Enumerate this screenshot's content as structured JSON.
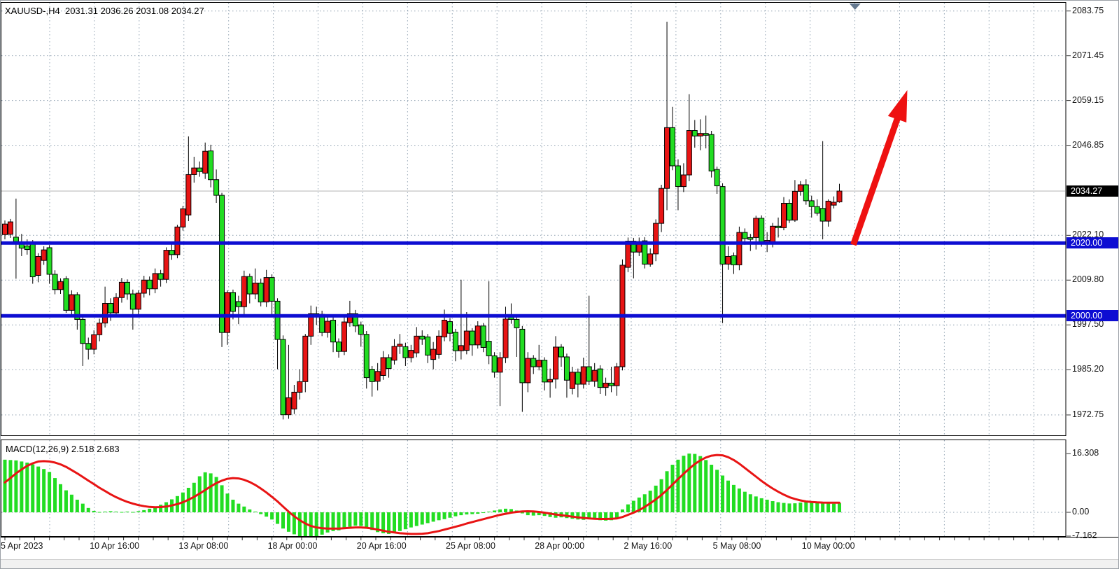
{
  "header": {
    "ohlc_label": "XAUUSD-,H4  2031.31 2036.26 2031.08 2034.27"
  },
  "indicator": {
    "label": "MACD(12,26,9) 2.518 2.683"
  },
  "colors": {
    "bull": "#e81414",
    "bear": "#22dd22",
    "wick": "#000000",
    "body_border": "#000000",
    "grid": "#8fa0b0",
    "current_line": "#b4b4b4",
    "level_line": "#0d0dd2",
    "axis_box_level_bg": "#0d0dd2",
    "axis_box_current_bg": "#000000",
    "macd_histogram": "#22dd22",
    "macd_signal": "#e81414",
    "arrow": "#ee1111",
    "marker": "#64788f",
    "panel_border": "#000000"
  },
  "chart_data": {
    "type": "candlestick",
    "symbol": "XAUUSD-",
    "timeframe": "H4",
    "title": "XAUUSD-,H4",
    "current_price": 2034.27,
    "ohlc_current": {
      "open": 2031.31,
      "high": 2036.26,
      "low": 2031.08,
      "close": 2034.27
    },
    "ylim": [
      1967.0,
      2085.5
    ],
    "price_ticks": [
      {
        "text": "2083.75",
        "price": 2083.75
      },
      {
        "text": "2071.45",
        "price": 2071.45
      },
      {
        "text": "2059.15",
        "price": 2059.15
      },
      {
        "text": "2046.85",
        "price": 2046.85
      },
      {
        "text": "2022.10",
        "price": 2022.1
      },
      {
        "text": "2009.80",
        "price": 2009.8
      },
      {
        "text": "1997.50",
        "price": 1997.5
      },
      {
        "text": "1985.20",
        "price": 1985.2
      },
      {
        "text": "1972.75",
        "price": 1972.75
      }
    ],
    "current_price_box": {
      "text": "2034.27",
      "price": 2034.27
    },
    "levels": [
      {
        "text": "2020.00",
        "price": 2020.0
      },
      {
        "text": "2000.00",
        "price": 2000.0
      }
    ],
    "x_ticks": [
      {
        "text": "5 Apr 2023",
        "bar": 0
      },
      {
        "text": "10 Apr 16:00",
        "bar": 16
      },
      {
        "text": "13 Apr 08:00",
        "bar": 32
      },
      {
        "text": "18 Apr 00:00",
        "bar": 48
      },
      {
        "text": "20 Apr 16:00",
        "bar": 64
      },
      {
        "text": "25 Apr 08:00",
        "bar": 80
      },
      {
        "text": "28 Apr 00:00",
        "bar": 96
      },
      {
        "text": "2 May 16:00",
        "bar": 112
      },
      {
        "text": "5 May 08:00",
        "bar": 128
      },
      {
        "text": "10 May 00:00",
        "bar": 144
      }
    ],
    "candles": [
      [
        2022.3,
        2026.2,
        2021.0,
        2025.2
      ],
      [
        2022.4,
        2026.6,
        2021.4,
        2025.8
      ],
      [
        2021.6,
        2032.2,
        2010.2,
        2020.4
      ],
      [
        2019.8,
        2022.5,
        2016.4,
        2018.6
      ],
      [
        2019.2,
        2021.0,
        2016.8,
        2018.2
      ],
      [
        2019.9,
        2020.8,
        2008.8,
        2010.7
      ],
      [
        2011.1,
        2017.2,
        2009.2,
        2016.3
      ],
      [
        2015.2,
        2019.1,
        2014.0,
        2018.1
      ],
      [
        2018.7,
        2019.4,
        2008.8,
        2011.4
      ],
      [
        2011.4,
        2012.5,
        2005.9,
        2007.2
      ],
      [
        2007.2,
        2010.3,
        2006.0,
        2009.4
      ],
      [
        2010.2,
        2010.9,
        2000.8,
        2001.5
      ],
      [
        2001.5,
        2007.0,
        2000.2,
        2005.8
      ],
      [
        2005.8,
        2006.5,
        1996.2,
        1999.0
      ],
      [
        1999.0,
        2000.1,
        1986.2,
        1992.4
      ],
      [
        1992.4,
        1994.0,
        1988.0,
        1990.8
      ],
      [
        1990.8,
        1996.0,
        1989.4,
        1994.8
      ],
      [
        1994.8,
        1999.2,
        1993.0,
        1998.0
      ],
      [
        1998.0,
        2008.0,
        1996.8,
        2003.4
      ],
      [
        2003.4,
        2004.8,
        1998.6,
        2000.8
      ],
      [
        2000.8,
        2006.2,
        1999.8,
        2005.0
      ],
      [
        2005.0,
        2010.4,
        2003.6,
        2009.2
      ],
      [
        2009.2,
        2010.0,
        2004.4,
        2006.0
      ],
      [
        2006.0,
        2007.2,
        1996.2,
        2001.8
      ],
      [
        2001.8,
        2007.0,
        2000.4,
        2006.2
      ],
      [
        2006.2,
        2011.0,
        2005.0,
        2009.8
      ],
      [
        2009.8,
        2010.8,
        2005.6,
        2007.4
      ],
      [
        2007.4,
        2013.0,
        2006.2,
        2011.6
      ],
      [
        2011.6,
        2012.6,
        2008.0,
        2010.0
      ],
      [
        2010.0,
        2018.8,
        2009.0,
        2018.0
      ],
      [
        2018.0,
        2019.6,
        2015.4,
        2016.8
      ],
      [
        2016.8,
        2025.0,
        2015.8,
        2024.4
      ],
      [
        2024.4,
        2030.2,
        2023.4,
        2029.4
      ],
      [
        2027.7,
        2049.3,
        2026.0,
        2038.8
      ],
      [
        2038.8,
        2043.7,
        2036.6,
        2040.6
      ],
      [
        2040.6,
        2042.4,
        2038.2,
        2039.6
      ],
      [
        2039.2,
        2047.6,
        2037.6,
        2045.2
      ],
      [
        2045.3,
        2047.0,
        2035.3,
        2037.4
      ],
      [
        2037.4,
        2040.2,
        2031.0,
        2033.1
      ],
      [
        2033.1,
        2033.8,
        1991.4,
        1995.4
      ],
      [
        1995.4,
        2007.0,
        1992.0,
        2006.4
      ],
      [
        2006.4,
        2007.2,
        1999.0,
        2001.2
      ],
      [
        2003.9,
        2005.5,
        1997.7,
        2002.5
      ],
      [
        2002.5,
        2012.4,
        2000.4,
        2010.8
      ],
      [
        2010.8,
        2011.6,
        2003.4,
        2006.0
      ],
      [
        2006.0,
        2013.0,
        2004.6,
        2009.0
      ],
      [
        2009.0,
        2010.2,
        2002.6,
        2003.8
      ],
      [
        2003.8,
        2012.6,
        2002.4,
        2010.5
      ],
      [
        2010.5,
        2011.4,
        2000.2,
        2004.0
      ],
      [
        2004.0,
        2004.8,
        1985.3,
        1993.5
      ],
      [
        1993.5,
        1994.6,
        1971.5,
        1972.8
      ],
      [
        1972.8,
        1992.0,
        1971.7,
        1977.5
      ],
      [
        1974.4,
        1981.0,
        1973.0,
        1979.0
      ],
      [
        1979.0,
        1985.3,
        1977.0,
        1981.9
      ],
      [
        1981.9,
        1995.0,
        1979.0,
        1994.4
      ],
      [
        1994.4,
        2002.8,
        1992.0,
        2000.6
      ],
      [
        2000.6,
        2002.5,
        1997.5,
        1999.8
      ],
      [
        2000.4,
        2001.4,
        1994.4,
        1995.4
      ],
      [
        1995.4,
        2000.0,
        1994.0,
        1998.5
      ],
      [
        1998.8,
        1999.6,
        1990.0,
        1992.8
      ],
      [
        1992.8,
        1993.8,
        1988.5,
        1990.2
      ],
      [
        1990.2,
        2000.2,
        1989.2,
        1998.3
      ],
      [
        1998.1,
        2004.1,
        1997.0,
        2000.6
      ],
      [
        2000.6,
        2001.6,
        1995.5,
        1997.2
      ],
      [
        1997.5,
        1998.4,
        1991.5,
        1994.9
      ],
      [
        1994.9,
        1995.8,
        1980.0,
        1983.0
      ],
      [
        1985.3,
        1986.2,
        1977.8,
        1981.9
      ],
      [
        1982.0,
        1987.0,
        1979.5,
        1984.7
      ],
      [
        1983.6,
        1990.3,
        1982.4,
        1988.5
      ],
      [
        1988.5,
        1989.4,
        1983.0,
        1985.5
      ],
      [
        1987.8,
        1993.6,
        1986.6,
        1991.6
      ],
      [
        1991.6,
        1995.0,
        1989.5,
        1992.2
      ],
      [
        1991.5,
        1992.6,
        1986.2,
        1988.5
      ],
      [
        1988.5,
        1992.0,
        1987.2,
        1990.5
      ],
      [
        1989.8,
        1996.9,
        1988.6,
        1994.4
      ],
      [
        1994.4,
        1996.0,
        1992.0,
        1993.6
      ],
      [
        1994.2,
        1995.0,
        1987.0,
        1989.2
      ],
      [
        1988.0,
        1992.8,
        1985.3,
        1990.8
      ],
      [
        1989.4,
        1996.0,
        1988.2,
        1994.4
      ],
      [
        1994.2,
        2001.7,
        1993.0,
        1998.8
      ],
      [
        1998.4,
        1999.4,
        1993.0,
        1995.2
      ],
      [
        1995.5,
        1996.4,
        1987.5,
        1990.4
      ],
      [
        1990.4,
        2009.9,
        1988.0,
        1991.8
      ],
      [
        1990.5,
        2001.0,
        1989.4,
        1995.8
      ],
      [
        1995.8,
        1996.6,
        1989.0,
        1992.0
      ],
      [
        1992.0,
        1998.5,
        1991.0,
        1997.2
      ],
      [
        1997.2,
        1998.0,
        1990.0,
        1991.3
      ],
      [
        1993.0,
        2009.5,
        1986.7,
        1989.0
      ],
      [
        1989.0,
        1990.0,
        1983.0,
        1984.5
      ],
      [
        1984.5,
        1990.0,
        1975.2,
        1988.5
      ],
      [
        1988.5,
        2002.5,
        1987.0,
        1999.1
      ],
      [
        2000.2,
        2003.4,
        1997.8,
        1999.0
      ],
      [
        1999.0,
        2000.0,
        1988.7,
        1996.7
      ],
      [
        1996.3,
        1997.2,
        1973.6,
        1981.6
      ],
      [
        1981.6,
        1990.0,
        1979.0,
        1988.3
      ],
      [
        1988.3,
        1989.2,
        1984.0,
        1986.0
      ],
      [
        1986.0,
        1992.0,
        1985.0,
        1987.8
      ],
      [
        1987.8,
        1988.6,
        1979.5,
        1981.8
      ],
      [
        1981.8,
        1985.5,
        1977.5,
        1982.5
      ],
      [
        1982.6,
        1994.4,
        1980.0,
        1991.4
      ],
      [
        1991.4,
        1992.2,
        1986.0,
        1988.7
      ],
      [
        1988.7,
        1989.6,
        1977.5,
        1982.3
      ],
      [
        1980.0,
        1986.0,
        1978.4,
        1984.5
      ],
      [
        1984.5,
        1985.5,
        1977.6,
        1981.2
      ],
      [
        1981.2,
        1988.5,
        1980.0,
        1986.0
      ],
      [
        1986.0,
        2005.5,
        1981.0,
        1982.0
      ],
      [
        1982.0,
        1987.0,
        1980.5,
        1985.0
      ],
      [
        1985.4,
        1986.4,
        1978.5,
        1980.3
      ],
      [
        1980.3,
        1983.0,
        1978.0,
        1981.5
      ],
      [
        1981.5,
        1986.0,
        1979.0,
        1980.8
      ],
      [
        1980.8,
        1987.0,
        1978.0,
        1986.0
      ],
      [
        1986.0,
        2015.5,
        1985.0,
        2013.9
      ],
      [
        2013.3,
        2021.5,
        2012.0,
        2020.5
      ],
      [
        2020.5,
        2021.4,
        2010.3,
        2017.5
      ],
      [
        2017.5,
        2021.5,
        2016.4,
        2020.4
      ],
      [
        2020.6,
        2021.6,
        2013.0,
        2014.2
      ],
      [
        2014.2,
        2018.5,
        2013.5,
        2017.0
      ],
      [
        2017.0,
        2026.5,
        2015.0,
        2025.4
      ],
      [
        2025.4,
        2036.0,
        2023.0,
        2035.0
      ],
      [
        2035.0,
        2080.8,
        2029.0,
        2051.7
      ],
      [
        2051.7,
        2057.4,
        2040.0,
        2041.2
      ],
      [
        2041.2,
        2043.0,
        2029.0,
        2035.5
      ],
      [
        2035.5,
        2041.9,
        2034.0,
        2038.7
      ],
      [
        2038.7,
        2060.9,
        2037.0,
        2050.9
      ],
      [
        2050.9,
        2053.8,
        2046.2,
        2049.4
      ],
      [
        2049.4,
        2054.0,
        2045.5,
        2050.1
      ],
      [
        2050.1,
        2055.0,
        2046.0,
        2049.6
      ],
      [
        2049.8,
        2050.8,
        2038.0,
        2039.8
      ],
      [
        2040.2,
        2041.0,
        2033.5,
        2035.7
      ],
      [
        2035.5,
        2036.4,
        1998.0,
        2014.2
      ],
      [
        2014.2,
        2019.1,
        2012.6,
        2016.3
      ],
      [
        2016.5,
        2017.4,
        2011.5,
        2014.0
      ],
      [
        2014.0,
        2024.5,
        2012.5,
        2022.9
      ],
      [
        2022.9,
        2024.0,
        2019.5,
        2021.2
      ],
      [
        2021.5,
        2022.5,
        2017.8,
        2021.0
      ],
      [
        2021.5,
        2027.5,
        2018.2,
        2026.8
      ],
      [
        2026.8,
        2027.6,
        2019.0,
        2019.9
      ],
      [
        2019.9,
        2023.0,
        2017.5,
        2020.7
      ],
      [
        2020.3,
        2025.5,
        2018.8,
        2024.6
      ],
      [
        2024.6,
        2027.0,
        2021.5,
        2024.2
      ],
      [
        2024.2,
        2032.6,
        2023.5,
        2030.9
      ],
      [
        2030.9,
        2032.0,
        2025.5,
        2026.3
      ],
      [
        2026.3,
        2037.3,
        2025.8,
        2034.2
      ],
      [
        2034.2,
        2037.0,
        2033.0,
        2036.0
      ],
      [
        2036.0,
        2037.5,
        2030.5,
        2031.6
      ],
      [
        2031.6,
        2033.0,
        2027.0,
        2030.0
      ],
      [
        2030.0,
        2032.0,
        2027.5,
        2028.2
      ],
      [
        2029.5,
        2048.0,
        2021.0,
        2026.0
      ],
      [
        2026.0,
        2032.0,
        2024.5,
        2031.5
      ],
      [
        2030.4,
        2032.8,
        2029.5,
        2031.2
      ],
      [
        2031.31,
        2036.26,
        2031.08,
        2034.27
      ]
    ],
    "macd": {
      "params": [
        12,
        26,
        9
      ],
      "value": 2.518,
      "signal_value": 2.683,
      "ylim": [
        -7.162,
        16.308
      ],
      "axis_ticks": [
        {
          "text": "16.308",
          "value": 16.308
        },
        {
          "text": "0.00",
          "value": 0
        },
        {
          "text": "-7.162",
          "value": -7.162
        }
      ],
      "histogram": [
        14.6,
        14.5,
        14.4,
        14.1,
        13.8,
        13.3,
        12.7,
        12.0,
        11.2,
        9.5,
        7.8,
        6.1,
        4.9,
        3.5,
        2.4,
        1.2,
        0.4,
        0.1,
        0.2,
        0.3,
        0.2,
        0.1,
        0.2,
        0.1,
        0.3,
        0.6,
        1.0,
        1.5,
        2.1,
        2.8,
        3.6,
        4.5,
        5.5,
        6.8,
        8.2,
        10.0,
        11.1,
        10.8,
        9.8,
        7.5,
        5.2,
        3.5,
        2.4,
        1.6,
        0.8,
        0.2,
        -0.5,
        -1.2,
        -2.0,
        -3.2,
        -4.5,
        -5.4,
        -6.1,
        -6.6,
        -7.0,
        -7.16,
        -6.8,
        -6.2,
        -5.6,
        -5.2,
        -5.0,
        -4.6,
        -4.0,
        -3.7,
        -3.8,
        -4.4,
        -4.9,
        -5.5,
        -5.8,
        -6.0,
        -5.6,
        -5.2,
        -4.7,
        -4.2,
        -3.8,
        -3.4,
        -3.0,
        -2.6,
        -2.2,
        -1.9,
        -1.5,
        -1.1,
        -0.8,
        -0.6,
        -0.5,
        -0.4,
        -0.2,
        0.2,
        0.5,
        0.8,
        1.0,
        0.9,
        0.5,
        -0.3,
        -0.8,
        -0.9,
        -0.8,
        -1.0,
        -1.3,
        -1.5,
        -1.4,
        -1.6,
        -1.8,
        -2.0,
        -2.1,
        -1.9,
        -2.0,
        -2.2,
        -2.3,
        -2.2,
        -1.6,
        0.8,
        2.2,
        3.2,
        4.1,
        5.0,
        6.0,
        7.4,
        9.2,
        11.4,
        13.2,
        14.6,
        15.7,
        16.3,
        16.2,
        15.6,
        14.5,
        13.2,
        11.8,
        10.2,
        8.8,
        7.6,
        6.6,
        5.7,
        5.0,
        4.4,
        3.9,
        3.5,
        3.1,
        2.8,
        2.6,
        2.45,
        2.5,
        2.7,
        2.9,
        2.85,
        2.7,
        2.55,
        2.45,
        2.4,
        2.518
      ],
      "signal": [
        8.3,
        9.5,
        10.8,
        11.9,
        12.9,
        13.6,
        14.1,
        14.2,
        14.1,
        13.8,
        13.3,
        12.6,
        11.7,
        10.8,
        9.8,
        8.8,
        7.8,
        6.8,
        5.9,
        5.0,
        4.2,
        3.5,
        2.9,
        2.4,
        2.0,
        1.7,
        1.5,
        1.4,
        1.45,
        1.6,
        1.9,
        2.3,
        2.8,
        3.5,
        4.3,
        5.2,
        6.2,
        7.2,
        8.1,
        8.8,
        9.3,
        9.5,
        9.4,
        9.0,
        8.4,
        7.6,
        6.6,
        5.5,
        4.3,
        3.0,
        1.6,
        0.2,
        -1.1,
        -2.2,
        -3.1,
        -3.8,
        -4.2,
        -4.4,
        -4.5,
        -4.5,
        -4.5,
        -4.4,
        -4.3,
        -4.2,
        -4.2,
        -4.3,
        -4.5,
        -4.8,
        -5.1,
        -5.4,
        -5.6,
        -5.8,
        -5.9,
        -6.0,
        -6.0,
        -5.95,
        -5.8,
        -5.5,
        -5.2,
        -4.8,
        -4.4,
        -4.0,
        -3.6,
        -3.1,
        -2.7,
        -2.3,
        -1.9,
        -1.5,
        -1.1,
        -0.7,
        -0.4,
        -0.1,
        0.1,
        0.25,
        0.3,
        0.25,
        0.1,
        -0.1,
        -0.35,
        -0.6,
        -0.8,
        -1.0,
        -1.2,
        -1.4,
        -1.55,
        -1.7,
        -1.8,
        -1.85,
        -1.85,
        -1.8,
        -1.7,
        -1.3,
        -0.7,
        -0.1,
        0.6,
        1.5,
        2.5,
        3.6,
        4.8,
        6.2,
        7.7,
        9.2,
        10.7,
        12.1,
        13.4,
        14.4,
        15.2,
        15.7,
        15.9,
        15.8,
        15.3,
        14.5,
        13.5,
        12.3,
        11.1,
        9.9,
        8.7,
        7.6,
        6.6,
        5.7,
        4.9,
        4.2,
        3.7,
        3.3,
        3.0,
        2.85,
        2.75,
        2.7,
        2.68,
        2.68,
        2.683
      ]
    },
    "trend_arrow": {
      "from_bar": 152.5,
      "from_price": 2019.5,
      "to_bar": 162.2,
      "to_price": 2062.0
    },
    "marker_bar": 152.8
  }
}
